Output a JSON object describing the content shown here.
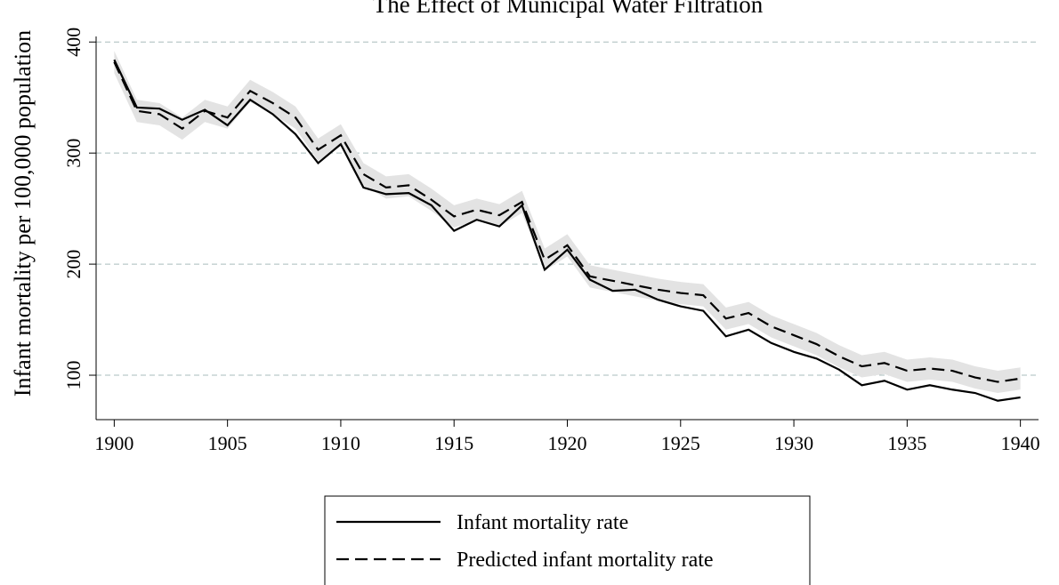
{
  "chart_data": {
    "type": "line",
    "title": "The Effect of Municipal Water Filtration",
    "y_label": "Infant mortality per 100,000 population",
    "x": [
      1900,
      1901,
      1902,
      1903,
      1904,
      1905,
      1906,
      1907,
      1908,
      1909,
      1910,
      1911,
      1912,
      1913,
      1914,
      1915,
      1916,
      1917,
      1918,
      1919,
      1920,
      1921,
      1922,
      1923,
      1924,
      1925,
      1926,
      1927,
      1928,
      1929,
      1930,
      1931,
      1932,
      1933,
      1934,
      1935,
      1936,
      1937,
      1938,
      1939,
      1940
    ],
    "series": [
      {
        "name": "Infant mortality rate",
        "color": "#000000",
        "dash": "solid",
        "values": [
          384,
          341,
          340,
          330,
          339,
          325,
          348,
          335,
          317,
          291,
          308,
          269,
          263,
          264,
          253,
          230,
          240,
          234,
          253,
          195,
          213,
          186,
          176,
          177,
          168,
          162,
          158,
          135,
          141,
          129,
          121,
          115,
          105,
          91,
          95,
          87,
          91,
          87,
          84,
          77,
          80
        ]
      },
      {
        "name": "Predicted infant mortality rate",
        "color": "#000000",
        "dash": "dashed",
        "values": [
          382,
          338,
          335,
          322,
          338,
          332,
          356,
          345,
          332,
          303,
          316,
          281,
          269,
          271,
          258,
          243,
          249,
          244,
          256,
          204,
          217,
          189,
          185,
          181,
          177,
          174,
          172,
          151,
          156,
          144,
          136,
          128,
          117,
          108,
          111,
          104,
          106,
          104,
          98,
          94,
          97
        ]
      }
    ],
    "interval": {
      "color": "#e3e3e3",
      "lower": [
        372,
        328,
        325,
        312,
        328,
        322,
        346,
        335,
        322,
        293,
        306,
        271,
        259,
        261,
        248,
        233,
        239,
        234,
        246,
        194,
        207,
        179,
        175,
        171,
        167,
        164,
        162,
        141,
        146,
        134,
        126,
        118,
        107,
        98,
        101,
        94,
        96,
        94,
        88,
        84,
        87
      ],
      "upper": [
        392,
        348,
        345,
        332,
        348,
        342,
        366,
        355,
        342,
        313,
        326,
        291,
        279,
        281,
        268,
        253,
        259,
        254,
        266,
        214,
        227,
        199,
        195,
        191,
        187,
        184,
        182,
        161,
        166,
        154,
        146,
        138,
        127,
        118,
        121,
        114,
        116,
        114,
        108,
        104,
        107
      ]
    },
    "xlim": [
      1899.2,
      1940.8
    ],
    "ylim": [
      60,
      405
    ],
    "xticks": [
      1900,
      1905,
      1910,
      1915,
      1920,
      1925,
      1930,
      1935,
      1940
    ],
    "yticks": [
      100,
      200,
      300,
      400
    ],
    "grid": true,
    "legend": "bottom"
  }
}
